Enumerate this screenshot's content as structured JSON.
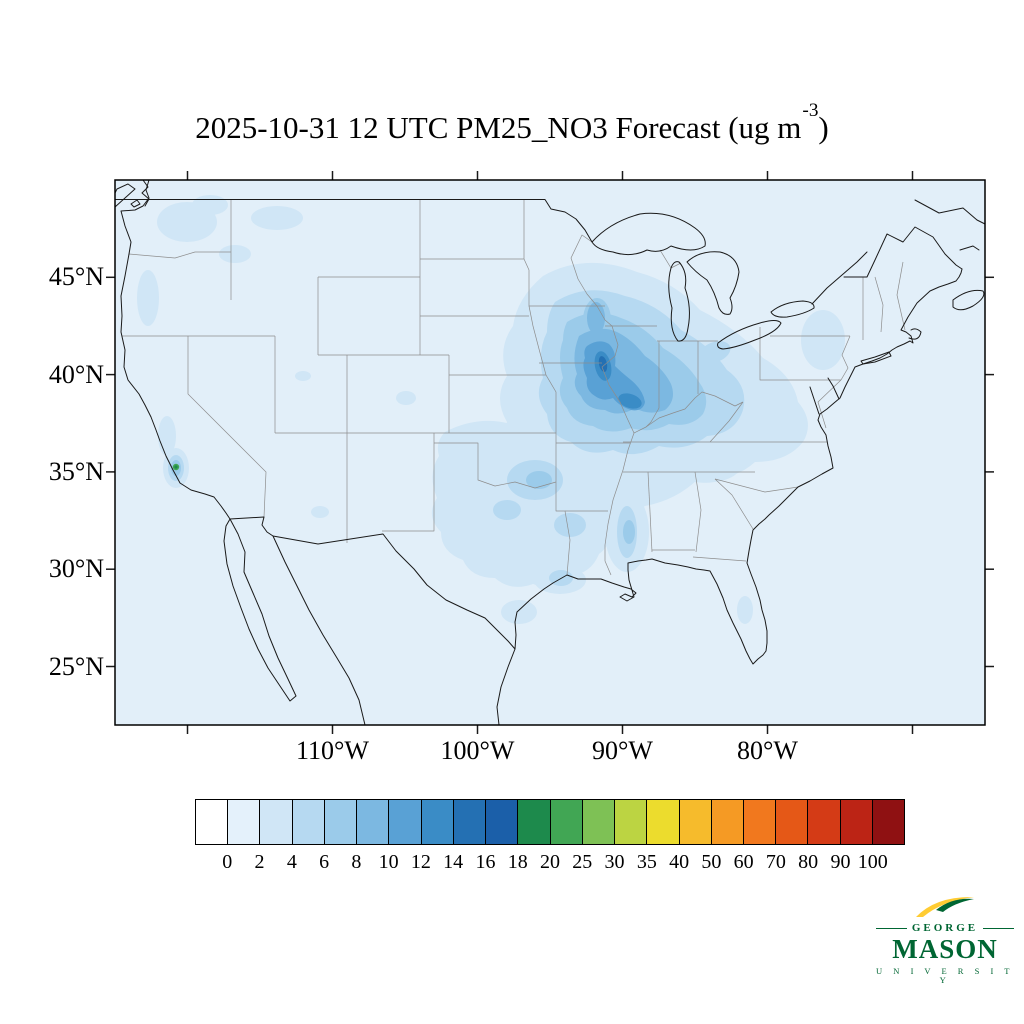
{
  "title": {
    "prefix": "2025-10-31 12 UTC PM25_NO3 Forecast (ug m",
    "exponent": "-3",
    "suffix": ")"
  },
  "axes": {
    "lat_labels": [
      "45°N",
      "40°N",
      "35°N",
      "30°N",
      "25°N"
    ],
    "lon_labels": [
      "110°W",
      "100°W",
      "90°W",
      "80°W"
    ]
  },
  "colorbar": {
    "tick_labels": [
      "0",
      "2",
      "4",
      "6",
      "8",
      "10",
      "12",
      "14",
      "16",
      "18",
      "20",
      "25",
      "30",
      "35",
      "40",
      "50",
      "60",
      "70",
      "80",
      "90",
      "100"
    ],
    "cell_colors": [
      "#ffffff",
      "#e4f1fb",
      "#d0e6f6",
      "#b6d9f1",
      "#9bcbea",
      "#7cb8e1",
      "#59a1d5",
      "#3a8cc6",
      "#2470b3",
      "#1b5fa9",
      "#1d8a4c",
      "#41a654",
      "#7ec155",
      "#bcd442",
      "#ecdc2d",
      "#f6bb2c",
      "#f59a24",
      "#f1781e",
      "#e55817",
      "#d43b16",
      "#bc2415",
      "#8f1112"
    ]
  },
  "palette": {
    "map_background": "#e2eff9",
    "coastline": "#1a1a1a",
    "state_border": "#8d8d8d",
    "shade_2": "#d0e6f6",
    "shade_4": "#b6d9f1",
    "shade_6": "#9bcbea",
    "shade_8": "#7cb8e1",
    "shade_10": "#59a1d5",
    "shade_12": "#3a8cc6",
    "shade_14": "#2470b3",
    "green_spot": "#41a654",
    "green_core": "#1d8a4c"
  },
  "logo": {
    "line1": "GEORGE",
    "line2": "MASON",
    "line3": "U N I V E R S I T Y",
    "green": "#006633",
    "gold": "#ffcc33"
  },
  "chart_data": {
    "type": "heatmap",
    "title": "2025-10-31 12 UTC PM25_NO3 Forecast (ug m-3)",
    "variable": "PM25_NO3",
    "units": "ug m-3",
    "forecast_valid": "2025-10-31 12 UTC",
    "region": "Contiguous United States",
    "x_tick_labels": [
      "110°W",
      "100°W",
      "90°W",
      "80°W"
    ],
    "y_tick_labels": [
      "45°N",
      "40°N",
      "35°N",
      "30°N",
      "25°N"
    ],
    "contour_levels": [
      0,
      2,
      4,
      6,
      8,
      10,
      12,
      14,
      16,
      18,
      20,
      25,
      30,
      35,
      40,
      50,
      60,
      70,
      80,
      90,
      100
    ],
    "colorbar_colors": [
      "#ffffff",
      "#e4f1fb",
      "#d0e6f6",
      "#b6d9f1",
      "#9bcbea",
      "#7cb8e1",
      "#59a1d5",
      "#3a8cc6",
      "#2470b3",
      "#1b5fa9",
      "#1d8a4c",
      "#41a654",
      "#7ec155",
      "#bcd442",
      "#ecdc2d",
      "#f6bb2c",
      "#f59a24",
      "#f1781e",
      "#e55817",
      "#d43b16",
      "#bc2415",
      "#8f1112"
    ],
    "legend_position": "bottom",
    "grid": false,
    "observed_maxima": [
      {
        "region": "Upper Midwest core (eastern Iowa / northwest-central Illinois / southern Wisconsin)",
        "approx_value_ug_m3": "12-16"
      },
      {
        "region": "Broader Midwest and Ohio Valley (Missouri, Iowa, Illinois, Indiana, western Ohio)",
        "approx_value_ug_m3": "4-10"
      },
      {
        "region": "Central and eastern Texas, Oklahoma, lower Mississippi Valley, Gulf Coast",
        "approx_value_ug_m3": "2-6"
      },
      {
        "region": "Central California (San Joaquin Valley) isolated hotspot",
        "approx_value_ug_m3": "16-20"
      },
      {
        "region": "Pacific Northwest coastal patches",
        "approx_value_ug_m3": "2-4"
      },
      {
        "region": "Remainder of domain background",
        "approx_value_ug_m3": "0-2"
      }
    ]
  }
}
